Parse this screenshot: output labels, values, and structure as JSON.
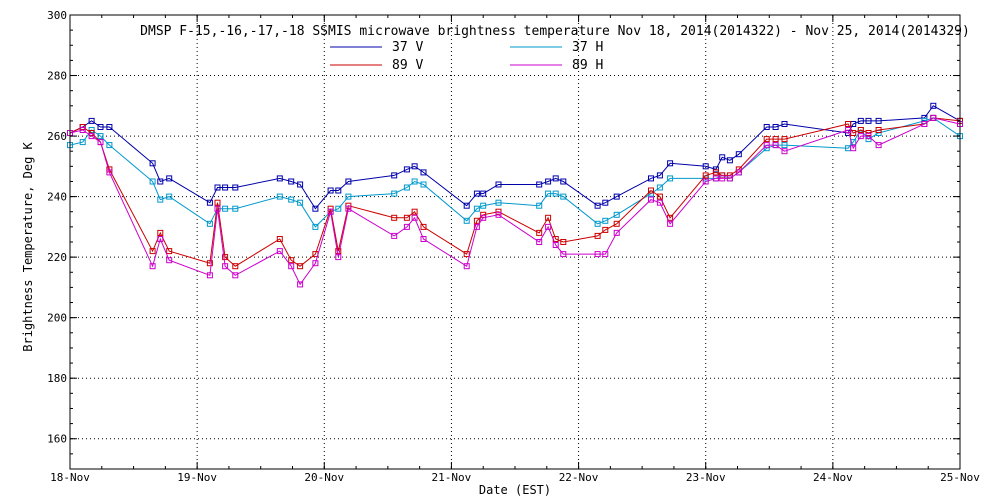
{
  "chart_data": {
    "type": "line",
    "title": "DMSP F-15,-16,-17,-18 SSMIS microwave brightness temperature Nov 18, 2014(2014322) - Nov 25, 2014(2014329)",
    "xlabel": "Date (EST)",
    "ylabel": "Brightness Temperature, Deg K",
    "xlim": [
      0,
      7
    ],
    "ylim": [
      150,
      300
    ],
    "yticks": [
      160,
      180,
      200,
      220,
      240,
      260,
      280,
      300
    ],
    "xtick_labels": [
      "18-Nov",
      "19-Nov",
      "20-Nov",
      "21-Nov",
      "22-Nov",
      "23-Nov",
      "24-Nov",
      "25-Nov"
    ],
    "grid": true,
    "legend_position": "top-center",
    "series": [
      {
        "name": "37 V",
        "color": "#0000aa",
        "x": [
          0.0,
          0.1,
          0.17,
          0.24,
          0.31,
          0.65,
          0.71,
          0.78,
          1.1,
          1.16,
          1.22,
          1.3,
          1.65,
          1.74,
          1.81,
          1.93,
          2.05,
          2.11,
          2.19,
          2.55,
          2.65,
          2.71,
          2.78,
          3.12,
          3.2,
          3.25,
          3.37,
          3.69,
          3.76,
          3.82,
          3.88,
          4.15,
          4.21,
          4.3,
          4.57,
          4.64,
          4.72,
          5.0,
          5.08,
          5.13,
          5.19,
          5.26,
          5.48,
          5.55,
          5.62,
          6.12,
          6.16,
          6.22,
          6.28,
          6.36,
          6.72,
          6.79,
          7.0
        ],
        "values": [
          261,
          263,
          265,
          263,
          263,
          251,
          245,
          246,
          238,
          243,
          243,
          243,
          246,
          245,
          244,
          236,
          242,
          242,
          245,
          247,
          249,
          250,
          248,
          237,
          241,
          241,
          244,
          244,
          245,
          246,
          245,
          237,
          238,
          240,
          246,
          247,
          251,
          250,
          249,
          253,
          252,
          254,
          263,
          263,
          264,
          261,
          264,
          265,
          265,
          265,
          266,
          270,
          265
        ]
      },
      {
        "name": "37 H",
        "color": "#0099cc",
        "x": [
          0.0,
          0.1,
          0.17,
          0.24,
          0.31,
          0.65,
          0.71,
          0.78,
          1.1,
          1.16,
          1.22,
          1.3,
          1.65,
          1.74,
          1.81,
          1.93,
          2.05,
          2.11,
          2.19,
          2.55,
          2.65,
          2.71,
          2.78,
          3.12,
          3.2,
          3.25,
          3.37,
          3.69,
          3.76,
          3.82,
          3.88,
          4.15,
          4.21,
          4.3,
          4.57,
          4.64,
          4.72,
          5.0,
          5.08,
          5.13,
          5.19,
          5.26,
          5.48,
          5.55,
          5.62,
          6.12,
          6.16,
          6.22,
          6.28,
          6.36,
          6.72,
          6.79,
          7.0
        ],
        "values": [
          257,
          258,
          262,
          260,
          257,
          245,
          239,
          240,
          231,
          236,
          236,
          236,
          240,
          239,
          238,
          230,
          235,
          236,
          240,
          241,
          243,
          245,
          244,
          232,
          236,
          237,
          238,
          237,
          241,
          241,
          240,
          231,
          232,
          234,
          241,
          243,
          246,
          246,
          246,
          247,
          246,
          248,
          256,
          257,
          257,
          256,
          258,
          262,
          259,
          261,
          265,
          266,
          260
        ]
      },
      {
        "name": "89 V",
        "color": "#cc0000",
        "x": [
          0.0,
          0.1,
          0.17,
          0.24,
          0.31,
          0.65,
          0.71,
          0.78,
          1.1,
          1.16,
          1.22,
          1.3,
          1.65,
          1.74,
          1.81,
          1.93,
          2.05,
          2.11,
          2.19,
          2.55,
          2.65,
          2.71,
          2.78,
          3.12,
          3.2,
          3.25,
          3.37,
          3.69,
          3.76,
          3.82,
          3.88,
          4.15,
          4.21,
          4.3,
          4.57,
          4.64,
          4.72,
          5.0,
          5.08,
          5.13,
          5.19,
          5.26,
          5.48,
          5.55,
          5.62,
          6.12,
          6.16,
          6.22,
          6.28,
          6.36,
          6.72,
          6.79,
          7.0
        ],
        "values": [
          261,
          263,
          261,
          258,
          249,
          222,
          228,
          222,
          218,
          238,
          220,
          217,
          226,
          219,
          217,
          221,
          236,
          222,
          237,
          233,
          233,
          235,
          230,
          221,
          232,
          234,
          235,
          228,
          233,
          226,
          225,
          227,
          229,
          231,
          242,
          240,
          233,
          247,
          248,
          247,
          247,
          249,
          259,
          259,
          259,
          264,
          261,
          262,
          261,
          262,
          264,
          266,
          265
        ]
      },
      {
        "name": "89 H",
        "color": "#cc00cc",
        "x": [
          0.0,
          0.1,
          0.17,
          0.24,
          0.31,
          0.65,
          0.71,
          0.78,
          1.1,
          1.16,
          1.22,
          1.3,
          1.65,
          1.74,
          1.81,
          1.93,
          2.05,
          2.11,
          2.19,
          2.55,
          2.65,
          2.71,
          2.78,
          3.12,
          3.2,
          3.25,
          3.37,
          3.69,
          3.76,
          3.82,
          3.88,
          4.15,
          4.21,
          4.3,
          4.57,
          4.64,
          4.72,
          5.0,
          5.08,
          5.13,
          5.19,
          5.26,
          5.48,
          5.55,
          5.62,
          6.12,
          6.16,
          6.22,
          6.28,
          6.36,
          6.72,
          6.79,
          7.0
        ],
        "values": [
          261,
          262,
          260,
          258,
          248,
          217,
          226,
          219,
          214,
          236,
          217,
          214,
          222,
          217,
          211,
          218,
          235,
          220,
          236,
          227,
          230,
          233,
          226,
          217,
          230,
          233,
          234,
          225,
          230,
          224,
          221,
          221,
          221,
          228,
          239,
          238,
          231,
          245,
          246,
          246,
          246,
          248,
          257,
          257,
          255,
          262,
          256,
          260,
          260,
          257,
          264,
          266,
          264
        ]
      }
    ]
  }
}
